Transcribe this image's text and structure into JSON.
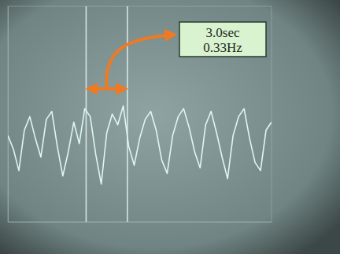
{
  "chart_data": {
    "type": "line",
    "tick_labels": false,
    "grid": false,
    "color": "#dff6f2",
    "x": [
      0,
      0.4,
      0.8,
      1.2,
      1.6,
      2,
      2.4,
      2.8,
      3.2,
      3.6,
      4,
      4.4,
      4.8,
      5.2,
      5.6,
      6,
      6.4,
      6.8,
      7.2,
      7.6,
      8,
      8.4,
      8.8,
      9.2,
      9.6,
      10,
      10.4,
      10.8,
      11.2,
      11.6,
      12,
      12.4,
      12.8,
      13.2,
      13.6,
      14,
      14.4,
      14.8,
      15.2,
      15.6,
      16,
      16.4,
      16.8,
      17.2,
      17.6,
      18,
      18.4,
      18.8,
      19.2
    ],
    "values": [
      0.2,
      -0.3,
      -1.1,
      0.4,
      0.9,
      0.1,
      -0.6,
      0.8,
      1.1,
      -0.2,
      -1.3,
      -0.4,
      0.7,
      -0.1,
      1.2,
      0.9,
      -0.5,
      -1.6,
      0.3,
      1.0,
      0.6,
      1.3,
      -0.2,
      -0.9,
      0.1,
      0.8,
      1.1,
      0.4,
      -0.7,
      -1.2,
      0.2,
      0.9,
      1.2,
      0.5,
      -0.4,
      -1.0,
      0.6,
      1.1,
      0.3,
      -0.6,
      -1.4,
      0.2,
      0.9,
      1.2,
      0.1,
      -0.8,
      -1.1,
      0.4,
      0.7
    ],
    "xlim": [
      0,
      19.2
    ],
    "ylim": [
      -3,
      5
    ],
    "cursors": [
      5.7,
      8.7
    ],
    "annotations": [
      "3.0sec",
      "0.33Hz"
    ]
  }
}
